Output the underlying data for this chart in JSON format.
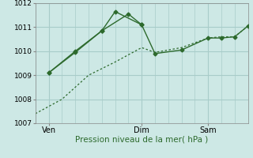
{
  "bg_color": "#cde8e5",
  "grid_color": "#a8ccc9",
  "line_color": "#2d6a2d",
  "title": "Pression niveau de la mer( hPa )",
  "ylim": [
    1007,
    1012
  ],
  "yticks": [
    1007,
    1008,
    1009,
    1010,
    1011,
    1012
  ],
  "xlim": [
    0,
    16
  ],
  "day_ticks": [
    1,
    8,
    13
  ],
  "day_labels": [
    "Ven",
    "Dim",
    "Sam"
  ],
  "line1_x": [
    1,
    3,
    5,
    7,
    8,
    9,
    11,
    13,
    14,
    15,
    16
  ],
  "line1_y": [
    1009.1,
    1010.0,
    1010.85,
    1011.55,
    1011.1,
    1009.9,
    1010.05,
    1010.55,
    1010.55,
    1010.6,
    1011.05
  ],
  "line2_x": [
    1,
    3,
    5,
    6,
    8
  ],
  "line2_y": [
    1009.1,
    1009.95,
    1010.85,
    1011.65,
    1011.1
  ],
  "line3_x": [
    0,
    2,
    4,
    6,
    8,
    9,
    11,
    13,
    14,
    15,
    16
  ],
  "line3_y": [
    1007.4,
    1008.0,
    1009.0,
    1009.55,
    1010.15,
    1009.95,
    1010.15,
    1010.55,
    1010.6,
    1010.6,
    1011.05
  ],
  "ytick_fontsize": 6.5,
  "xtick_fontsize": 7,
  "xlabel_fontsize": 7.5
}
